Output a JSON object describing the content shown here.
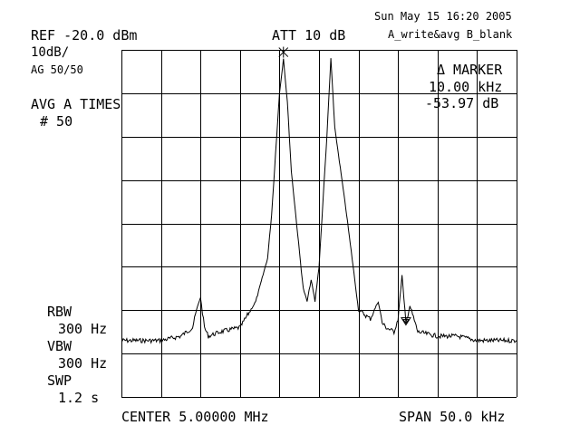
{
  "header": {
    "datetime": "Sun May 15 16:20 2005",
    "trace_modes": "A_write&avg B_blank",
    "ref_level": "REF -20.0 dBm",
    "attenuation": "ATT 10 dB",
    "scale": "10dB/",
    "avg_setting": "AG 50/50",
    "avg_label": "AVG A TIMES",
    "avg_count": "# 50"
  },
  "marker": {
    "title": "Δ MARKER",
    "freq": "10.00 kHz",
    "level": "-53.97 dB"
  },
  "left_panel": {
    "rbw_label": "RBW",
    "rbw_value": "300 Hz",
    "vbw_label": "VBW",
    "vbw_value": "300 Hz",
    "swp_label": "SWP",
    "swp_value": "1.2 s"
  },
  "footer": {
    "center": "CENTER 5.00000 MHz",
    "span": "SPAN 50.0 kHz"
  },
  "colors": {
    "trace": "#000000",
    "grid": "#000000",
    "background": "#ffffff"
  },
  "icons": {
    "reference_marker": "asterisk-marker-icon",
    "delta_marker": "triangle-marker-icon"
  },
  "chart_data": {
    "type": "line",
    "grid": true,
    "x_divisions": 10,
    "y_divisions": 8,
    "xlim": [
      4.975,
      5.025
    ],
    "ylim": [
      -100,
      -20
    ],
    "x": [
      4.975,
      4.9775,
      4.98,
      4.9825,
      4.984,
      4.9845,
      4.985,
      4.9855,
      4.986,
      4.9875,
      4.99,
      4.992,
      4.9935,
      4.994,
      4.9945,
      4.995,
      4.9955,
      4.996,
      4.9965,
      4.998,
      4.9985,
      4.999,
      4.9995,
      5.0,
      5.0005,
      5.001,
      5.0015,
      5.002,
      5.0035,
      5.005,
      5.0065,
      5.007,
      5.0075,
      5.008,
      5.0085,
      5.0095,
      5.01,
      5.0105,
      5.011,
      5.0115,
      5.0125,
      5.015,
      5.0175,
      5.02,
      5.0225,
      5.025
    ],
    "y": [
      -87,
      -87,
      -87,
      -86,
      -84,
      -80,
      -77,
      -84,
      -86,
      -85,
      -84,
      -78,
      -68,
      -58,
      -44,
      -30,
      -22,
      -32,
      -48,
      -75,
      -78,
      -73,
      -78,
      -70,
      -55,
      -40,
      -22,
      -38,
      -58,
      -80,
      -82,
      -80,
      -78,
      -83,
      -84,
      -85,
      -82,
      -72,
      -83,
      -79,
      -85,
      -86,
      -86,
      -87,
      -87,
      -87
    ],
    "series": [
      {
        "values": "trace"
      }
    ]
  }
}
